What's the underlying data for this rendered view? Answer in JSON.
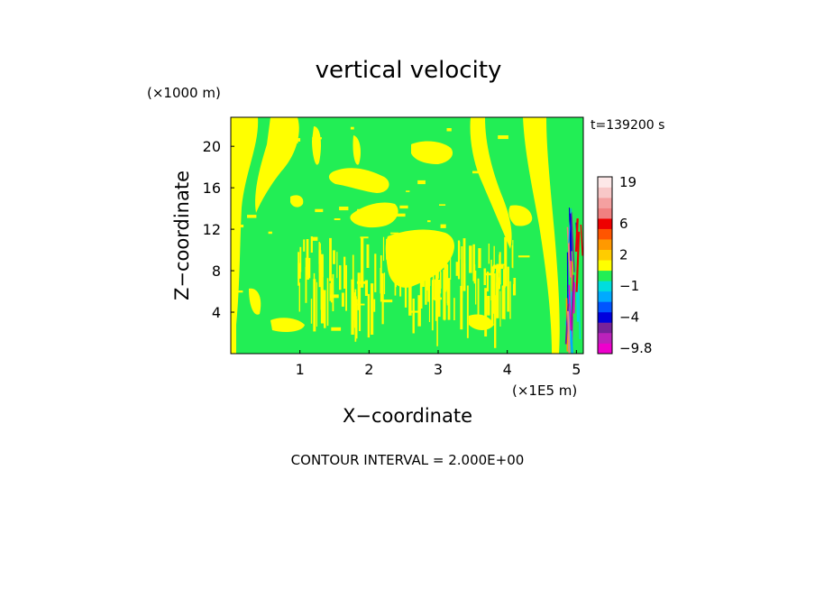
{
  "chart_data": {
    "type": "heatmap",
    "title": "vertical velocity",
    "xlabel": "X−coordinate",
    "ylabel": "Z−coordinate",
    "x_unit": "(×1E5 m)",
    "y_unit": "(×1000 m)",
    "time_label": "t=139200 s",
    "footer": "CONTOUR INTERVAL = 2.000E+00",
    "xlim": [
      0,
      5.1
    ],
    "ylim": [
      0,
      22.8
    ],
    "x_ticks": [
      "1",
      "2",
      "3",
      "4",
      "5"
    ],
    "x_tick_values": [
      1,
      2,
      3,
      4,
      5
    ],
    "y_ticks": [
      "4",
      "8",
      "12",
      "16",
      "20"
    ],
    "y_tick_values": [
      4,
      8,
      12,
      16,
      20
    ],
    "grid": false,
    "field_colors": {
      "background_band": "#22ee55",
      "positive_band": "#ffff00"
    },
    "colorbar": {
      "levels": [
        {
          "value": -9.8,
          "color": "#ee00cc"
        },
        {
          "value": -8,
          "color": "#bb22bb"
        },
        {
          "value": -6,
          "color": "#772299"
        },
        {
          "value": -4,
          "color": "#0000dd"
        },
        {
          "value": -3,
          "color": "#0055ff"
        },
        {
          "value": -2,
          "color": "#00aaff"
        },
        {
          "value": -1,
          "color": "#00dddd"
        },
        {
          "value": 0,
          "color": "#22ee55"
        },
        {
          "value": 1,
          "color": "#ffff00"
        },
        {
          "value": 2,
          "color": "#ffcc00"
        },
        {
          "value": 3,
          "color": "#ff9900"
        },
        {
          "value": 4,
          "color": "#ff5500"
        },
        {
          "value": 6,
          "color": "#ee0000"
        },
        {
          "value": 8,
          "color": "#f08080"
        },
        {
          "value": 12,
          "color": "#f4a0a0"
        },
        {
          "value": 16,
          "color": "#f8c8c8"
        },
        {
          "value": 19,
          "color": "#fde8e8"
        }
      ],
      "labels": [
        "19",
        "6",
        "2",
        "−1",
        "−4",
        "−9.8"
      ],
      "label_values": [
        19,
        6,
        2,
        -1,
        -4,
        -9.8
      ]
    }
  }
}
